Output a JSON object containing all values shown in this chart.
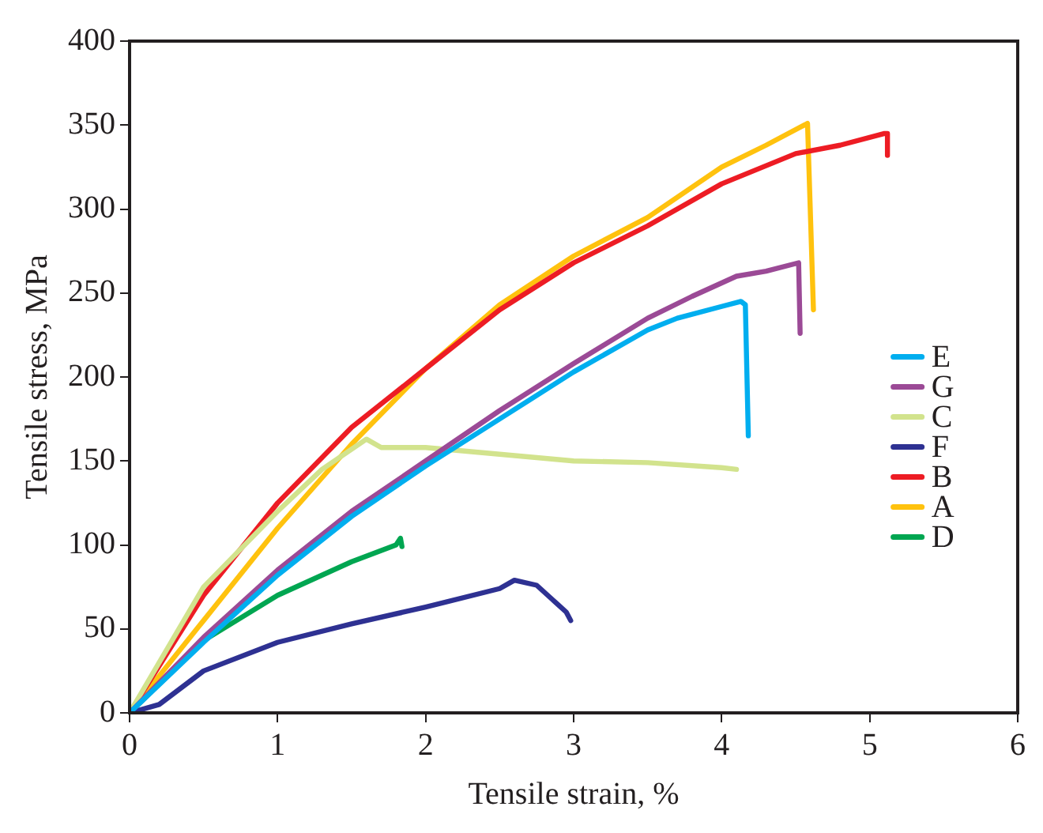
{
  "chart_data": {
    "type": "line",
    "xlabel": "Tensile strain, %",
    "ylabel": "Tensile stress, MPa",
    "xlim": [
      0,
      6
    ],
    "xticks": [
      0,
      1,
      2,
      3,
      4,
      5,
      6
    ],
    "ylim": [
      0,
      400
    ],
    "yticks": [
      0,
      50,
      100,
      150,
      200,
      250,
      300,
      350,
      400
    ],
    "grid": false,
    "legend": "right",
    "marker": "none",
    "line_style": "solid",
    "series": [
      {
        "name": "E",
        "color": "#00aeef",
        "x": [
          0,
          0.5,
          1,
          1.5,
          2,
          2.5,
          3,
          3.5,
          3.7,
          4,
          4.13,
          4.16,
          4.18
        ],
        "values": [
          0,
          42,
          82,
          117,
          147,
          175,
          203,
          228,
          235,
          242,
          245,
          243,
          165
        ]
      },
      {
        "name": "G",
        "color": "#9b4a96",
        "x": [
          0,
          0.5,
          1,
          1.5,
          2,
          2.5,
          3,
          3.5,
          3.8,
          4.1,
          4.3,
          4.52,
          4.53
        ],
        "values": [
          0,
          45,
          85,
          120,
          150,
          180,
          208,
          235,
          248,
          260,
          263,
          268,
          226
        ]
      },
      {
        "name": "C",
        "color": "#d2e38d",
        "x": [
          0,
          0.3,
          0.5,
          1,
          1.3,
          1.6,
          1.7,
          2,
          2.5,
          3,
          3.5,
          4,
          4.1
        ],
        "values": [
          0,
          45,
          75,
          120,
          145,
          163,
          158,
          158,
          154,
          150,
          149,
          146,
          145
        ]
      },
      {
        "name": "F",
        "color": "#2e3192",
        "x": [
          0,
          0.2,
          0.5,
          1,
          1.5,
          2,
          2.5,
          2.6,
          2.75,
          2.85,
          2.95,
          2.98
        ],
        "values": [
          0,
          5,
          25,
          42,
          53,
          63,
          74,
          79,
          76,
          68,
          60,
          55
        ]
      },
      {
        "name": "B",
        "color": "#ed1c24",
        "x": [
          0,
          0.5,
          1,
          1.5,
          2,
          2.5,
          3,
          3.5,
          4,
          4.5,
          4.8,
          5.1,
          5.12,
          5.12
        ],
        "values": [
          0,
          70,
          125,
          170,
          205,
          240,
          268,
          290,
          315,
          333,
          338,
          345,
          345,
          332
        ]
      },
      {
        "name": "A",
        "color": "#ffc20e",
        "x": [
          0,
          0.5,
          1,
          1.5,
          2,
          2.5,
          3,
          3.5,
          4,
          4.3,
          4.58,
          4.62
        ],
        "values": [
          0,
          55,
          110,
          160,
          205,
          243,
          272,
          295,
          325,
          338,
          351,
          240
        ]
      },
      {
        "name": "D",
        "color": "#00a651",
        "x": [
          0,
          0.5,
          1,
          1.5,
          1.8,
          1.83,
          1.84
        ],
        "values": [
          0,
          43,
          70,
          90,
          100,
          104,
          99
        ]
      }
    ]
  }
}
